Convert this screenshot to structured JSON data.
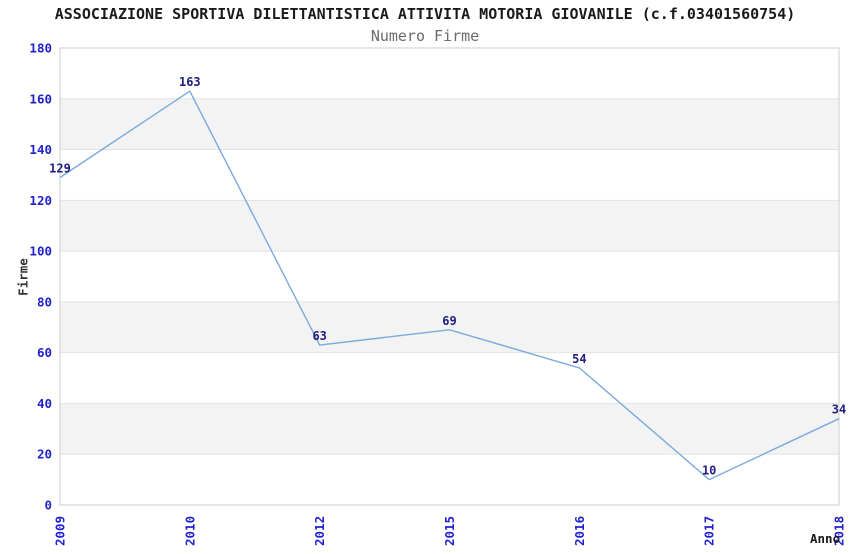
{
  "header": {
    "title": "ASSOCIAZIONE SPORTIVA DILETTANTISTICA ATTIVITA MOTORIA GIOVANILE (c.f.03401560754)",
    "subtitle": "Numero Firme"
  },
  "chart_data": {
    "type": "line",
    "title": "ASSOCIAZIONE SPORTIVA DILETTANTISTICA ATTIVITA MOTORIA GIOVANILE (c.f.03401560754)",
    "subtitle": "Numero Firme",
    "categories": [
      "2009",
      "2010",
      "2012",
      "2015",
      "2016",
      "2017",
      "2018"
    ],
    "values": [
      129,
      163,
      63,
      69,
      54,
      10,
      34
    ],
    "xlabel": "Anno",
    "ylabel": "Firme",
    "ylim": [
      0,
      180
    ],
    "ytick_step": 20,
    "yticks": [
      0,
      20,
      40,
      60,
      80,
      100,
      120,
      140,
      160,
      180
    ],
    "grid": "horizontal-bands-alternating",
    "legend": "none",
    "point_labels_visible": true,
    "colors": {
      "line": "#7aaade",
      "tick_label": "#2222cc",
      "point_label": "#202080",
      "band_fill": "#f3f3f3",
      "grid_line": "#e3e3e3",
      "plot_border": "#cccccc",
      "title_text": "#1a1a1a",
      "subtitle_text": "#6b6b6b",
      "axis_label_text": "#333333",
      "background": "#ffffff"
    }
  }
}
